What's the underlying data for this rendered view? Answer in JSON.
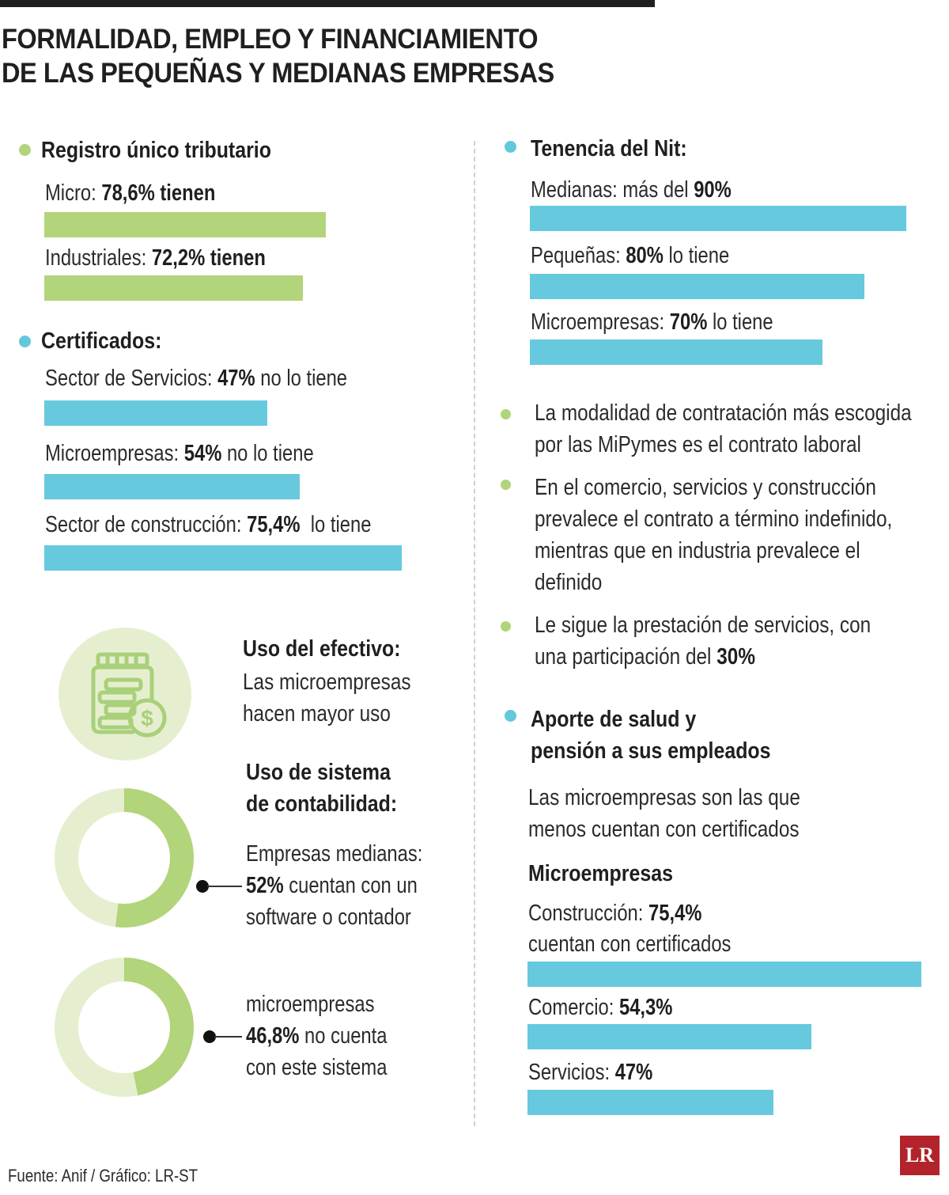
{
  "title": {
    "line1": "FORMALIDAD, EMPLEO Y FINANCIAMIENTO",
    "line2": "DE LAS PEQUEÑAS Y MEDIANAS EMPRESAS"
  },
  "colors": {
    "green": "#b2d47a",
    "blue": "#62c8dc",
    "circle_light": "#e5efcf"
  },
  "rut": {
    "heading": "Registro único tributario",
    "rows": [
      {
        "prefix": "Micro: ",
        "value": "78,6%",
        "suffix": " tienen"
      },
      {
        "prefix": "Industriales: ",
        "value": "72,2%",
        "suffix": " tienen"
      }
    ]
  },
  "certificados": {
    "heading": "Certificados:",
    "rows": [
      {
        "prefix": "Sector de Servicios: ",
        "value": "47%",
        "suffix": " no lo tiene"
      },
      {
        "prefix": "Microempresas: ",
        "value": "54%",
        "suffix": " no lo tiene"
      },
      {
        "prefix": "Sector de construcción: ",
        "value": "75,4%",
        "suffix": "  lo tiene"
      }
    ]
  },
  "nit": {
    "heading": "Tenencia del Nit:",
    "rows": [
      {
        "prefix": "Medianas: más del ",
        "value": "90%",
        "suffix": ""
      },
      {
        "prefix": "Pequeñas: ",
        "value": "80%",
        "suffix": " lo tiene"
      },
      {
        "prefix": "Microempresas: ",
        "value": "70%",
        "suffix": " lo tiene"
      }
    ]
  },
  "contratos": [
    {
      "text": "La modalidad de contratación más escogida por las MiPymes es el contrato laboral"
    },
    {
      "text": "En el comercio, servicios y construcción prevalece el contrato a término indefinido, mientras que en industria prevalece el definido"
    },
    {
      "text": "Le sigue la prestación de servicios, con una participación del ",
      "bold": "30%"
    }
  ],
  "efectivo": {
    "heading": "Uso del efectivo:",
    "text": "Las microempresas hacen mayor uso",
    "icon": "money-jar-icon"
  },
  "contabilidad": {
    "heading_line1": "Uso de sistema",
    "heading_line2": "de contabilidad:",
    "medianas": {
      "line1": "Empresas medianas:",
      "value": "52%",
      "rest": " cuentan con un",
      "line3": "software o contador"
    },
    "micro": {
      "line1": "microempresas",
      "value": "46,8%",
      "rest": " no cuenta",
      "line3": "con este sistema"
    }
  },
  "salud": {
    "heading_line1": "Aporte de salud y",
    "heading_line2": "pensión a sus empleados",
    "intro": "Las microempresas son las que menos cuentan con certificados",
    "subheading": "Microempresas",
    "rows": [
      {
        "prefix": "Construcción: ",
        "value": "75,4%",
        "suffix": "",
        "line2": "cuentan con certificados"
      },
      {
        "prefix": "Comercio: ",
        "value": "54,3%",
        "suffix": "",
        "line2": ""
      },
      {
        "prefix": "Servicios: ",
        "value": "47%",
        "suffix": "",
        "line2": ""
      }
    ]
  },
  "footer": "Fuente: Anif / Gráfico: LR-ST",
  "logo": "LR",
  "chart_data": [
    {
      "type": "bar",
      "title": "Registro único tributario",
      "categories": [
        "Micro",
        "Industriales"
      ],
      "values": [
        78.6,
        72.2
      ],
      "color": "#b2d47a"
    },
    {
      "type": "bar",
      "title": "Certificados:",
      "categories": [
        "Sector de Servicios",
        "Microempresas",
        "Sector de construcción"
      ],
      "values": [
        47,
        54,
        75.4
      ],
      "color": "#62c8dc"
    },
    {
      "type": "bar",
      "title": "Tenencia del Nit:",
      "categories": [
        "Medianas",
        "Pequeñas",
        "Microempresas"
      ],
      "values": [
        90,
        80,
        70
      ],
      "color": "#62c8dc"
    },
    {
      "type": "pie",
      "title": "Uso de sistema de contabilidad:",
      "categories": [
        "Empresas medianas"
      ],
      "values": [
        52
      ],
      "color": "#b2d47a"
    },
    {
      "type": "pie",
      "categories": [
        "microempresas"
      ],
      "values": [
        46.8
      ],
      "color": "#b2d47a"
    },
    {
      "type": "bar",
      "title": "Microempresas",
      "categories": [
        "Construcción",
        "Comercio",
        "Servicios"
      ],
      "values": [
        75.4,
        54.3,
        47
      ],
      "color": "#62c8dc"
    }
  ]
}
